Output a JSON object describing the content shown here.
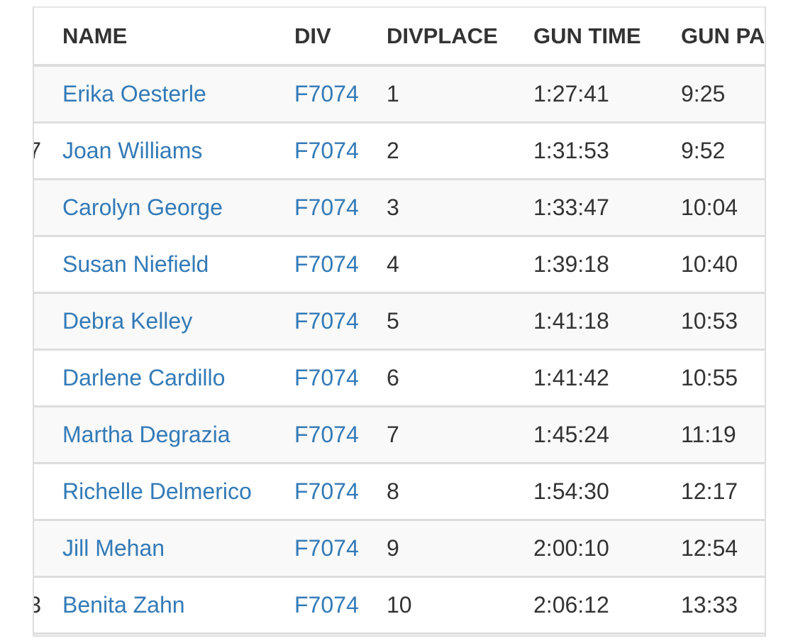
{
  "table": {
    "header": [
      "NAME",
      "DIV",
      "DIVPLACE",
      "GUN TIME",
      "GUN PA"
    ],
    "rows": [
      {
        "name": "Erika Oesterle",
        "div": "F7074",
        "divplace": "1",
        "gun_time": "1:27:41",
        "gun_pace": "9:25"
      },
      {
        "clipped": "7",
        "name": "Joan Williams",
        "div": "F7074",
        "divplace": "2",
        "gun_time": "1:31:53",
        "gun_pace": "9:52"
      },
      {
        "name": "Carolyn George",
        "div": "F7074",
        "divplace": "3",
        "gun_time": "1:33:47",
        "gun_pace": "10:04"
      },
      {
        "name": "Susan Niefield",
        "div": "F7074",
        "divplace": "4",
        "gun_time": "1:39:18",
        "gun_pace": "10:40"
      },
      {
        "name": "Debra Kelley",
        "div": "F7074",
        "divplace": "5",
        "gun_time": "1:41:18",
        "gun_pace": "10:53"
      },
      {
        "name": "Darlene Cardillo",
        "div": "F7074",
        "divplace": "6",
        "gun_time": "1:41:42",
        "gun_pace": "10:55"
      },
      {
        "name": "Martha Degrazia",
        "div": "F7074",
        "divplace": "7",
        "gun_time": "1:45:24",
        "gun_pace": "11:19"
      },
      {
        "name": "Richelle Delmerico",
        "div": "F7074",
        "divplace": "8",
        "gun_time": "1:54:30",
        "gun_pace": "12:17"
      },
      {
        "name": "Jill Mehan",
        "div": "F7074",
        "divplace": "9",
        "gun_time": "2:00:10",
        "gun_pace": "12:54"
      },
      {
        "clipped": "3",
        "name": "Benita Zahn",
        "div": "F7074",
        "divplace": "10",
        "gun_time": "2:06:12",
        "gun_pace": "13:33"
      }
    ]
  }
}
